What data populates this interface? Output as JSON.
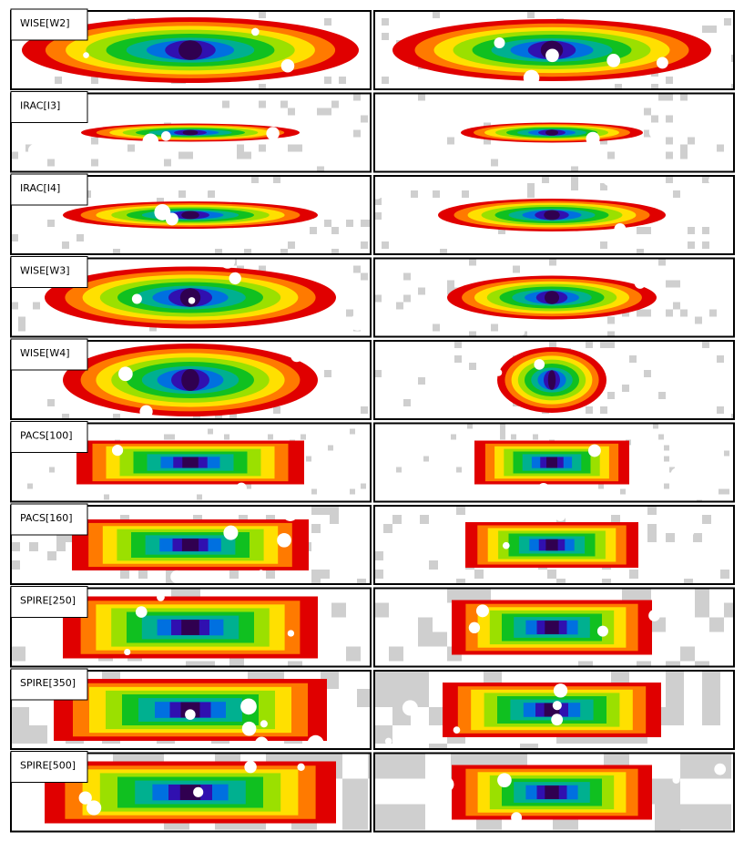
{
  "panels": [
    {
      "label": "WISE[W2]"
    },
    {
      "label": "IRAC[I3]"
    },
    {
      "label": "IRAC[I4]"
    },
    {
      "label": "WISE[W3]"
    },
    {
      "label": "WISE[W4]"
    },
    {
      "label": "PACS[100]"
    },
    {
      "label": "PACS[160]"
    },
    {
      "label": "SPIRE[250]"
    },
    {
      "label": "SPIRE[350]"
    },
    {
      "label": "SPIRE[500]"
    }
  ]
}
